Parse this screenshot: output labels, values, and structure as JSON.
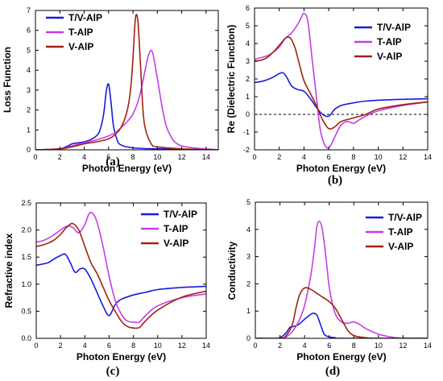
{
  "colors": {
    "T/V-AlP": "#1a1adc",
    "T-AlP": "#c63de6",
    "V-AlP": "#a0230d",
    "axis": "#000000"
  },
  "chart_data": [
    {
      "type": "line",
      "panel_label": "(a)",
      "xlabel": "Photon Energy (eV)",
      "ylabel": "Loss Function",
      "xlim": [
        0,
        15
      ],
      "ylim": [
        0,
        7
      ],
      "xticks": [
        0,
        2,
        4,
        6,
        8,
        10,
        12,
        14
      ],
      "yticks": [
        0,
        1,
        2,
        3,
        4,
        5,
        6,
        7
      ],
      "legend": "top-left",
      "series": [
        {
          "name": "T/V-AlP",
          "x": [
            0,
            1,
            2,
            2.5,
            3,
            3.5,
            4,
            4.5,
            5,
            5.3,
            5.6,
            5.8,
            6,
            6.2,
            6.4,
            6.7,
            7,
            8,
            10,
            15
          ],
          "y": [
            0,
            0,
            0.05,
            0.15,
            0.3,
            0.35,
            0.4,
            0.5,
            0.7,
            1,
            1.8,
            2.9,
            3.3,
            2.4,
            1.2,
            0.5,
            0.25,
            0.1,
            0.05,
            0
          ]
        },
        {
          "name": "T-AlP",
          "x": [
            0,
            2,
            3,
            4,
            5,
            6,
            6.5,
            7,
            7.5,
            8,
            8.5,
            9,
            9.3,
            9.6,
            10,
            10.5,
            11,
            12,
            15
          ],
          "y": [
            0,
            0.05,
            0.2,
            0.35,
            0.5,
            0.7,
            0.85,
            1.1,
            1.4,
            1.8,
            2.6,
            4,
            4.8,
            4.9,
            3.6,
            1.8,
            0.8,
            0.2,
            0
          ]
        },
        {
          "name": "V-AlP",
          "x": [
            0,
            2,
            3,
            4,
            5,
            6,
            6.5,
            7,
            7.5,
            7.8,
            8,
            8.2,
            8.4,
            8.6,
            8.8,
            9,
            9.5,
            10,
            12,
            15
          ],
          "y": [
            0,
            0.05,
            0.15,
            0.3,
            0.4,
            0.55,
            0.75,
            1.1,
            1.9,
            3,
            4.6,
            6.6,
            6.5,
            4.5,
            2.2,
            1.1,
            0.3,
            0.15,
            0.05,
            0
          ]
        }
      ]
    },
    {
      "type": "line",
      "panel_label": "(b)",
      "xlabel": "Photon Energy (eV)",
      "ylabel": "Re (Dielectric Function)",
      "xlim": [
        0,
        14
      ],
      "ylim": [
        -2,
        6
      ],
      "xticks": [
        0,
        2,
        4,
        6,
        8,
        10,
        12,
        14
      ],
      "yticks": [
        -2,
        -1,
        0,
        1,
        2,
        3,
        4,
        5,
        6
      ],
      "zero_line": "dashed",
      "legend": "top-right",
      "series": [
        {
          "name": "T/V-AlP",
          "x": [
            0,
            0.5,
            1,
            1.5,
            2,
            2.3,
            2.6,
            3,
            3.5,
            4,
            4.5,
            5,
            5.5,
            6,
            6.5,
            7,
            8,
            9,
            10,
            12,
            14
          ],
          "y": [
            1.8,
            1.85,
            1.95,
            2.1,
            2.3,
            2.35,
            2.1,
            1.6,
            1.4,
            1.3,
            0.9,
            0.4,
            0,
            -0.1,
            0.3,
            0.5,
            0.65,
            0.75,
            0.8,
            0.85,
            0.88
          ]
        },
        {
          "name": "T-AlP",
          "x": [
            0,
            0.5,
            1,
            1.5,
            2,
            2.5,
            3,
            3.5,
            3.8,
            4,
            4.3,
            4.6,
            5,
            5.3,
            5.6,
            5.9,
            6.2,
            6.6,
            7,
            7.5,
            8,
            8.5,
            9,
            10,
            12,
            14
          ],
          "y": [
            3.1,
            3.2,
            3.3,
            3.5,
            3.8,
            4.3,
            4.6,
            5.1,
            5.5,
            5.7,
            5.3,
            3.5,
            1,
            -0.8,
            -1.6,
            -1.9,
            -1.7,
            -1.1,
            -0.6,
            -0.4,
            -0.5,
            -0.3,
            -0.1,
            0.2,
            0.5,
            0.7
          ]
        },
        {
          "name": "V-AlP",
          "x": [
            0,
            0.5,
            1,
            1.5,
            2,
            2.5,
            2.8,
            3,
            3.3,
            3.6,
            4,
            4.5,
            5,
            5.5,
            6,
            6.5,
            7,
            8,
            9,
            10,
            12,
            14
          ],
          "y": [
            3,
            3.05,
            3.2,
            3.5,
            3.9,
            4.3,
            4.35,
            4.2,
            3.7,
            2.9,
            1.9,
            1.2,
            0.5,
            -0.3,
            -0.8,
            -0.7,
            -0.4,
            -0.2,
            0,
            0.3,
            0.55,
            0.7
          ]
        }
      ]
    },
    {
      "type": "line",
      "panel_label": "(c)",
      "xlabel": "Photon Energy (eV)",
      "ylabel": "Refractive index",
      "xlim": [
        0,
        14
      ],
      "ylim": [
        0,
        2.5
      ],
      "xticks": [
        0,
        2,
        4,
        6,
        8,
        10,
        12,
        14
      ],
      "yticks": [
        0,
        0.5,
        1.0,
        1.5,
        2.0,
        2.5
      ],
      "legend": "top-right",
      "series": [
        {
          "name": "T/V-AlP",
          "x": [
            0,
            0.5,
            1,
            1.5,
            2,
            2.4,
            2.8,
            3.2,
            3.6,
            4,
            4.5,
            5,
            5.5,
            6,
            6.5,
            7,
            8,
            9,
            10,
            12,
            14
          ],
          "y": [
            1.35,
            1.37,
            1.4,
            1.47,
            1.53,
            1.55,
            1.4,
            1.22,
            1.28,
            1.28,
            1.1,
            0.85,
            0.6,
            0.42,
            0.62,
            0.72,
            0.8,
            0.85,
            0.9,
            0.94,
            0.96
          ]
        },
        {
          "name": "T-AlP",
          "x": [
            0,
            0.5,
            1,
            1.5,
            2,
            2.5,
            3,
            3.5,
            4,
            4.3,
            4.6,
            5,
            5.5,
            6,
            6.5,
            7,
            7.5,
            8,
            8.5,
            9,
            10,
            12,
            14
          ],
          "y": [
            1.78,
            1.8,
            1.85,
            1.92,
            2,
            2.07,
            2.05,
            1.95,
            2.1,
            2.28,
            2.32,
            2.15,
            1.7,
            1.15,
            0.7,
            0.45,
            0.32,
            0.3,
            0.3,
            0.42,
            0.6,
            0.75,
            0.82
          ]
        },
        {
          "name": "V-AlP",
          "x": [
            0,
            0.5,
            1,
            1.5,
            2,
            2.5,
            3,
            3.5,
            4,
            4.5,
            5,
            5.5,
            6,
            6.5,
            7,
            7.5,
            8,
            8.5,
            9,
            10,
            12,
            14
          ],
          "y": [
            1.7,
            1.72,
            1.76,
            1.82,
            1.92,
            2.05,
            2.12,
            2,
            1.7,
            1.4,
            1.2,
            0.95,
            0.7,
            0.5,
            0.32,
            0.22,
            0.19,
            0.2,
            0.32,
            0.52,
            0.76,
            0.87
          ]
        }
      ]
    },
    {
      "type": "line",
      "panel_label": "(d)",
      "xlabel": "Photon Energy (eV)",
      "ylabel": "Conductivity",
      "xlim": [
        0,
        14
      ],
      "ylim": [
        0,
        5
      ],
      "xticks": [
        0,
        2,
        4,
        6,
        8,
        10,
        12,
        14
      ],
      "yticks": [
        0,
        1,
        2,
        3,
        4,
        5
      ],
      "legend": "top-right",
      "series": [
        {
          "name": "T/V-AlP",
          "x": [
            0,
            1.5,
            2,
            2.5,
            2.8,
            3,
            3.5,
            4,
            4.4,
            4.7,
            5,
            5.3,
            5.6,
            6,
            6.5,
            7,
            14
          ],
          "y": [
            0,
            0,
            0.02,
            0.2,
            0.4,
            0.42,
            0.5,
            0.7,
            0.85,
            0.92,
            0.85,
            0.5,
            0.15,
            0.05,
            0.02,
            0,
            0
          ]
        },
        {
          "name": "T-AlP",
          "x": [
            0,
            2,
            2.5,
            3,
            3.5,
            4,
            4.5,
            4.8,
            5,
            5.2,
            5.4,
            5.6,
            5.8,
            6,
            6.3,
            6.6,
            7,
            7.5,
            8,
            8.5,
            9,
            10,
            11,
            12,
            14
          ],
          "y": [
            0,
            0,
            0.05,
            0.25,
            0.6,
            1.2,
            2.3,
            3.3,
            4.1,
            4.3,
            4.1,
            3.5,
            2.7,
            1.9,
            1.2,
            0.8,
            0.6,
            0.55,
            0.6,
            0.5,
            0.35,
            0.15,
            0.05,
            0,
            0
          ]
        },
        {
          "name": "V-AlP",
          "x": [
            0,
            2,
            2.5,
            3,
            3.3,
            3.6,
            4,
            4.5,
            5,
            5.5,
            6,
            6.5,
            7,
            7.5,
            8,
            9,
            10,
            14
          ],
          "y": [
            0,
            0,
            0.1,
            0.5,
            1.1,
            1.6,
            1.85,
            1.8,
            1.65,
            1.5,
            1.35,
            1.1,
            0.7,
            0.3,
            0.1,
            0.02,
            0,
            0
          ]
        }
      ]
    }
  ]
}
